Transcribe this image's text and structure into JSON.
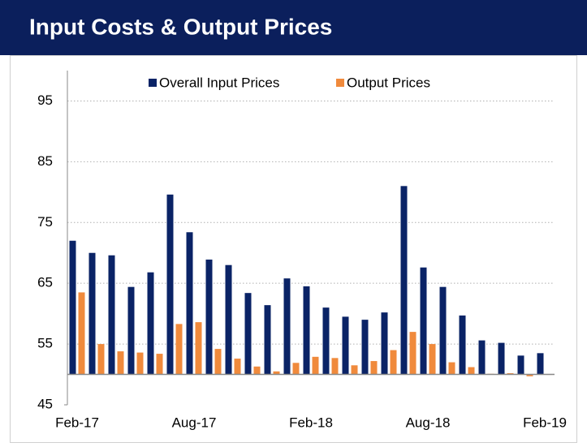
{
  "chart_data": {
    "type": "bar",
    "title": "Input Costs & Output Prices",
    "categories": [
      "Feb-17",
      null,
      null,
      null,
      null,
      null,
      "Aug-17",
      null,
      null,
      null,
      null,
      null,
      "Feb-18",
      null,
      null,
      null,
      null,
      null,
      "Aug-18",
      null,
      null,
      null,
      null,
      null,
      "Feb-19"
    ],
    "series": [
      {
        "name": "Overall Input Prices",
        "color": "#0a2366",
        "values": [
          72.0,
          70.0,
          69.6,
          64.4,
          66.8,
          79.6,
          73.4,
          68.9,
          68.0,
          63.4,
          61.4,
          65.8,
          64.5,
          61.0,
          59.5,
          59.0,
          60.2,
          81.0,
          67.6,
          64.4,
          59.7,
          55.6,
          55.2,
          53.1,
          53.5
        ]
      },
      {
        "name": "Output Prices",
        "color": "#f08a3c",
        "values": [
          63.5,
          55.0,
          53.8,
          53.6,
          53.4,
          58.3,
          58.6,
          54.2,
          52.6,
          51.3,
          50.5,
          51.9,
          52.9,
          52.7,
          51.5,
          52.2,
          54.0,
          57.0,
          55.0,
          52.0,
          51.2,
          50.1,
          50.2,
          49.7,
          50.0
        ]
      }
    ],
    "baseline": 50,
    "ylim": [
      45,
      100
    ],
    "yticks": [
      45,
      55,
      65,
      75,
      85,
      95
    ],
    "grid": true,
    "legend": "top"
  }
}
